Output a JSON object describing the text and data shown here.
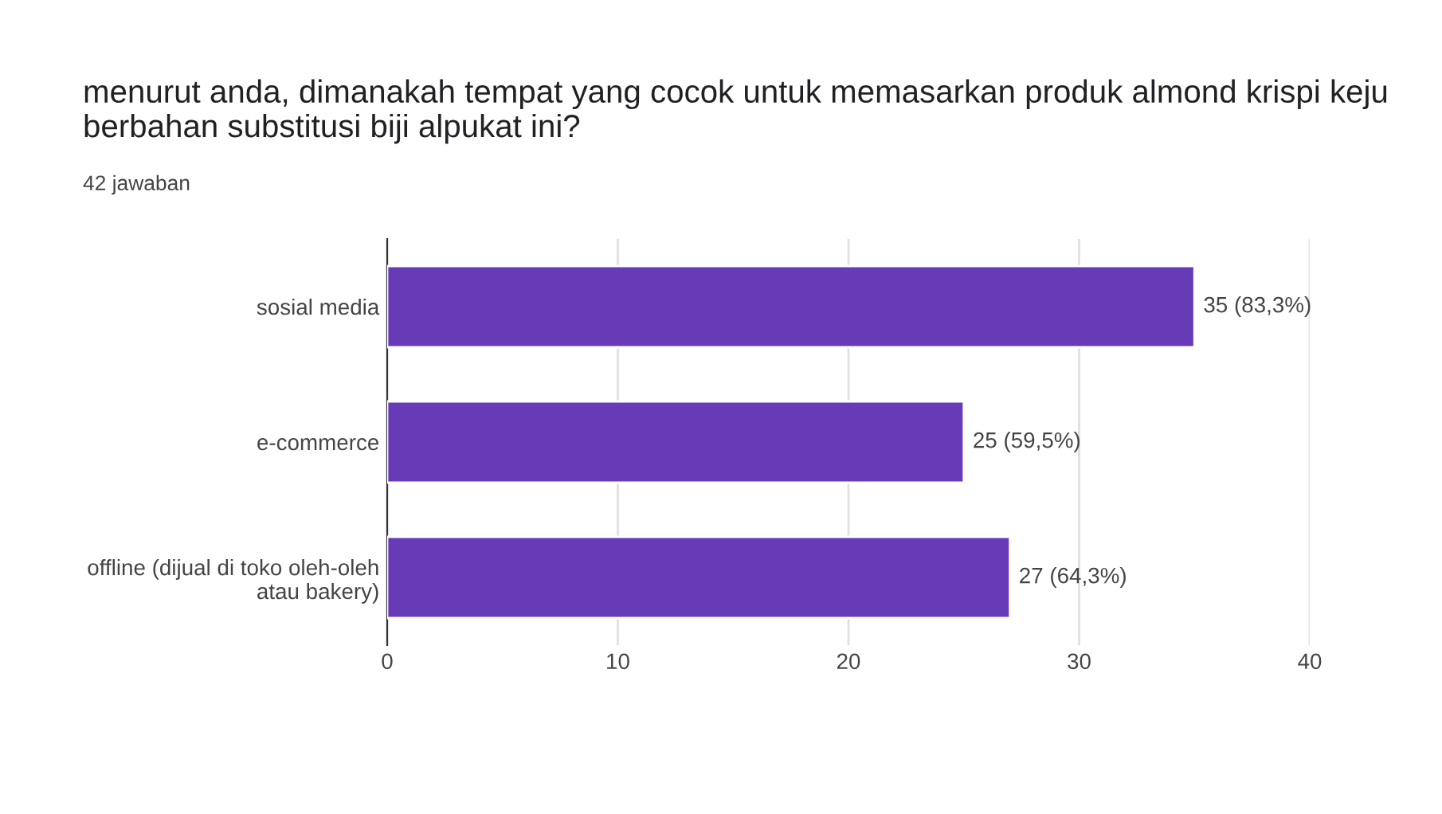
{
  "chart_data": {
    "type": "bar",
    "orientation": "horizontal",
    "title": "menurut anda, dimanakah tempat yang cocok untuk memasarkan produk almond krispi keju berbahan substitusi biji alpukat ini?",
    "subtitle": "42 jawaban",
    "categories": [
      "sosial media",
      "e-commerce",
      "offline (dijual di toko oleh-oleh\natau bakery)"
    ],
    "values": [
      35,
      25,
      27
    ],
    "value_labels": [
      "35 (83,3%)",
      "25 (59,5%)",
      "27 (64,3%)"
    ],
    "color": "#673ab7",
    "xlim": [
      0,
      40
    ],
    "xticks": [
      0,
      10,
      20,
      30,
      40
    ],
    "grid": "x"
  }
}
